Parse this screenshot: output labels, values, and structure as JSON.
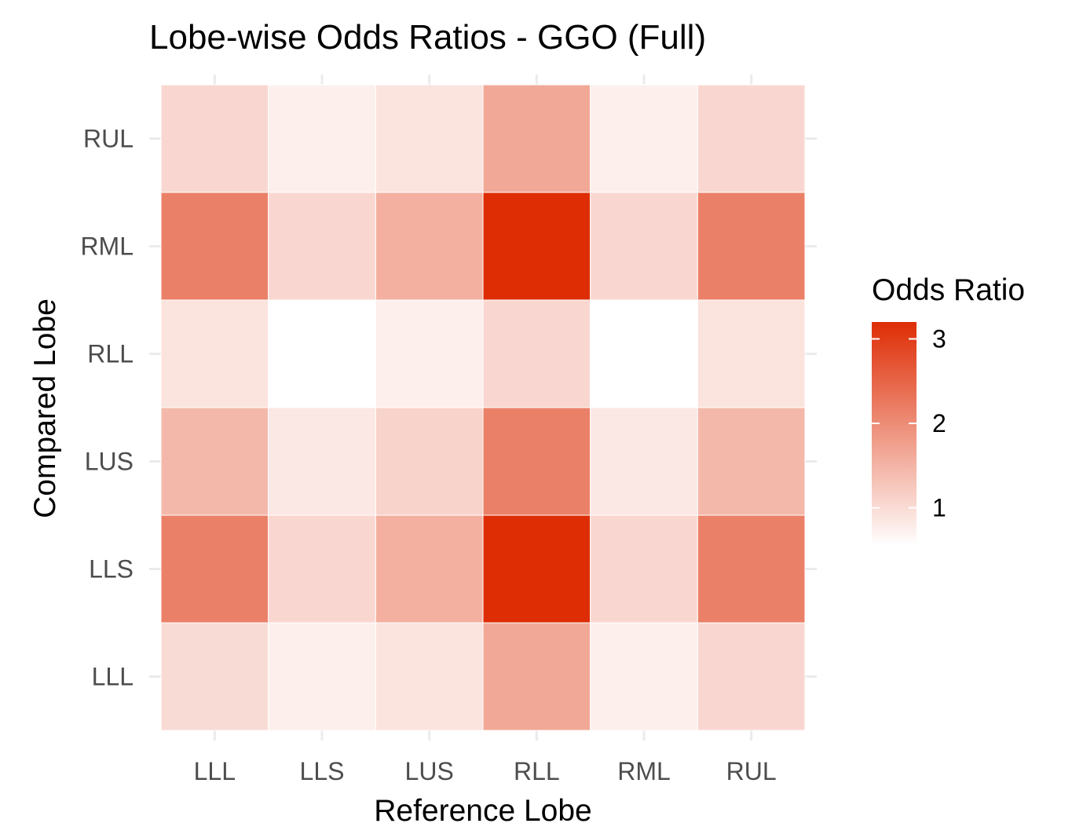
{
  "chart_data": {
    "type": "heatmap",
    "title": "Lobe-wise Odds Ratios - GGO (Full)",
    "xlabel": "Reference Lobe",
    "ylabel": "Compared Lobe",
    "x_categories": [
      "LLL",
      "LLS",
      "LUS",
      "RLL",
      "RML",
      "RUL"
    ],
    "y_categories": [
      "LLL",
      "LLS",
      "LUS",
      "RLL",
      "RML",
      "RUL"
    ],
    "values": [
      [
        1.0,
        0.75,
        0.9,
        1.65,
        0.75,
        1.05
      ],
      [
        2.15,
        1.05,
        1.55,
        3.2,
        1.05,
        2.15
      ],
      [
        1.45,
        0.85,
        1.1,
        2.15,
        0.85,
        1.45
      ],
      [
        0.9,
        0.55,
        0.75,
        1.05,
        0.55,
        0.9
      ],
      [
        2.15,
        1.05,
        1.55,
        3.2,
        1.05,
        2.15
      ],
      [
        1.05,
        0.75,
        0.9,
        1.65,
        0.75,
        1.05
      ]
    ],
    "legend": {
      "title": "Odds Ratio",
      "ticks": [
        1,
        2,
        3
      ],
      "range": [
        0.55,
        3.2
      ],
      "placement": "right",
      "low_color": "#ffffff",
      "high_color": "#de2d05"
    },
    "grid": true
  }
}
